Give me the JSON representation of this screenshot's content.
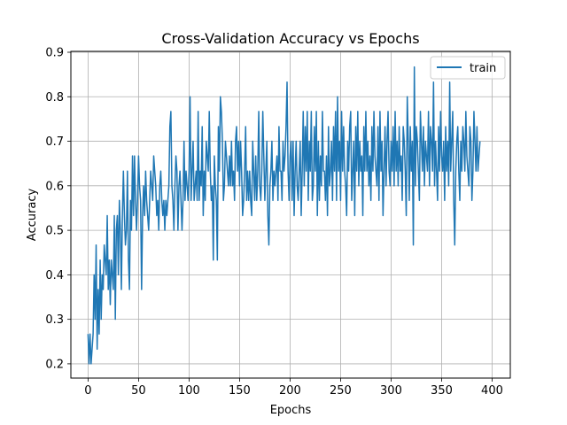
{
  "chart_data": {
    "type": "line",
    "title": "Cross-Validation Accuracy vs Epochs",
    "xlabel": "Epochs",
    "ylabel": "Accuracy",
    "xlim": [
      -17,
      418
    ],
    "ylim": [
      0.168,
      0.902
    ],
    "xticks": [
      0,
      50,
      100,
      150,
      200,
      250,
      300,
      350,
      400
    ],
    "yticks": [
      0.2,
      0.3,
      0.4,
      0.5,
      0.6,
      0.7,
      0.8,
      0.9
    ],
    "xtick_labels": [
      "0",
      "50",
      "100",
      "150",
      "200",
      "250",
      "300",
      "350",
      "400"
    ],
    "ytick_labels": [
      "0.2",
      "0.3",
      "0.4",
      "0.5",
      "0.6",
      "0.7",
      "0.8",
      "0.9"
    ],
    "grid": true,
    "legend": {
      "position": "top-right",
      "entries": [
        "train"
      ]
    },
    "colors": {
      "train": "#1f77b4",
      "grid": "#b0b0b0"
    },
    "series": [
      {
        "name": "train",
        "x_start": 0,
        "x_step": 1,
        "values": [
          0.267,
          0.2,
          0.267,
          0.2,
          0.233,
          0.267,
          0.4,
          0.3,
          0.467,
          0.233,
          0.367,
          0.267,
          0.433,
          0.3,
          0.4,
          0.367,
          0.467,
          0.433,
          0.4,
          0.533,
          0.367,
          0.433,
          0.333,
          0.433,
          0.4,
          0.367,
          0.533,
          0.3,
          0.5,
          0.533,
          0.4,
          0.567,
          0.5,
          0.367,
          0.533,
          0.633,
          0.533,
          0.467,
          0.5,
          0.633,
          0.433,
          0.367,
          0.567,
          0.5,
          0.667,
          0.533,
          0.667,
          0.567,
          0.5,
          0.567,
          0.667,
          0.6,
          0.567,
          0.367,
          0.533,
          0.6,
          0.533,
          0.633,
          0.567,
          0.533,
          0.5,
          0.567,
          0.633,
          0.6,
          0.567,
          0.667,
          0.633,
          0.6,
          0.533,
          0.567,
          0.5,
          0.6,
          0.633,
          0.567,
          0.533,
          0.567,
          0.5,
          0.567,
          0.533,
          0.567,
          0.6,
          0.733,
          0.767,
          0.6,
          0.567,
          0.5,
          0.6,
          0.667,
          0.633,
          0.5,
          0.6,
          0.633,
          0.567,
          0.5,
          0.567,
          0.7,
          0.567,
          0.633,
          0.6,
          0.567,
          0.633,
          0.8,
          0.567,
          0.633,
          0.7,
          0.567,
          0.6,
          0.633,
          0.567,
          0.767,
          0.567,
          0.633,
          0.6,
          0.733,
          0.533,
          0.633,
          0.567,
          0.7,
          0.667,
          0.633,
          0.767,
          0.633,
          0.567,
          0.6,
          0.433,
          0.667,
          0.6,
          0.567,
          0.433,
          0.733,
          0.633,
          0.8,
          0.767,
          0.7,
          0.567,
          0.6,
          0.7,
          0.667,
          0.633,
          0.6,
          0.667,
          0.6,
          0.7,
          0.6,
          0.633,
          0.567,
          0.7,
          0.733,
          0.633,
          0.7,
          0.6,
          0.7,
          0.633,
          0.533,
          0.567,
          0.633,
          0.733,
          0.567,
          0.633,
          0.567,
          0.633,
          0.567,
          0.533,
          0.7,
          0.633,
          0.567,
          0.667,
          0.567,
          0.633,
          0.767,
          0.6,
          0.567,
          0.633,
          0.767,
          0.667,
          0.567,
          0.633,
          0.7,
          0.533,
          0.467,
          0.6,
          0.633,
          0.7,
          0.567,
          0.633,
          0.6,
          0.633,
          0.667,
          0.567,
          0.733,
          0.633,
          0.633,
          0.567,
          0.7,
          0.633,
          0.667,
          0.733,
          0.833,
          0.633,
          0.567,
          0.667,
          0.7,
          0.567,
          0.7,
          0.533,
          0.633,
          0.7,
          0.6,
          0.567,
          0.633,
          0.7,
          0.533,
          0.633,
          0.767,
          0.6,
          0.733,
          0.633,
          0.767,
          0.567,
          0.7,
          0.633,
          0.767,
          0.567,
          0.6,
          0.733,
          0.633,
          0.767,
          0.533,
          0.7,
          0.567,
          0.667,
          0.6,
          0.767,
          0.633,
          0.633,
          0.567,
          0.667,
          0.533,
          0.733,
          0.6,
          0.633,
          0.7,
          0.567,
          0.733,
          0.633,
          0.767,
          0.567,
          0.8,
          0.633,
          0.7,
          0.567,
          0.767,
          0.633,
          0.733,
          0.633,
          0.6,
          0.533,
          0.7,
          0.633,
          0.733,
          0.767,
          0.567,
          0.633,
          0.7,
          0.533,
          0.733,
          0.633,
          0.767,
          0.6,
          0.7,
          0.633,
          0.667,
          0.533,
          0.733,
          0.633,
          0.767,
          0.633,
          0.7,
          0.6,
          0.667,
          0.567,
          0.733,
          0.633,
          0.767,
          0.667,
          0.633,
          0.6,
          0.733,
          0.567,
          0.767,
          0.633,
          0.7,
          0.533,
          0.633,
          0.733,
          0.6,
          0.7,
          0.767,
          0.633,
          0.6,
          0.7,
          0.633,
          0.733,
          0.6,
          0.767,
          0.633,
          0.7,
          0.6,
          0.733,
          0.633,
          0.667,
          0.567,
          0.733,
          0.7,
          0.633,
          0.533,
          0.8,
          0.7,
          0.567,
          0.733,
          0.633,
          0.7,
          0.467,
          0.867,
          0.6,
          0.733,
          0.7,
          0.633,
          0.567,
          0.767,
          0.7,
          0.633,
          0.733,
          0.6,
          0.7,
          0.667,
          0.633,
          0.767,
          0.6,
          0.733,
          0.7,
          0.633,
          0.833,
          0.6,
          0.7,
          0.633,
          0.567,
          0.733,
          0.633,
          0.767,
          0.667,
          0.633,
          0.7,
          0.567,
          0.733,
          0.633,
          0.7,
          0.6,
          0.833,
          0.633,
          0.7,
          0.767,
          0.567,
          0.467,
          0.633,
          0.7,
          0.733,
          0.633,
          0.567,
          0.7,
          0.633,
          0.733,
          0.7,
          0.633,
          0.767,
          0.667,
          0.633,
          0.6,
          0.733,
          0.7,
          0.567,
          0.633,
          0.767,
          0.7,
          0.633,
          0.733,
          0.633,
          0.667,
          0.7
        ]
      }
    ]
  }
}
